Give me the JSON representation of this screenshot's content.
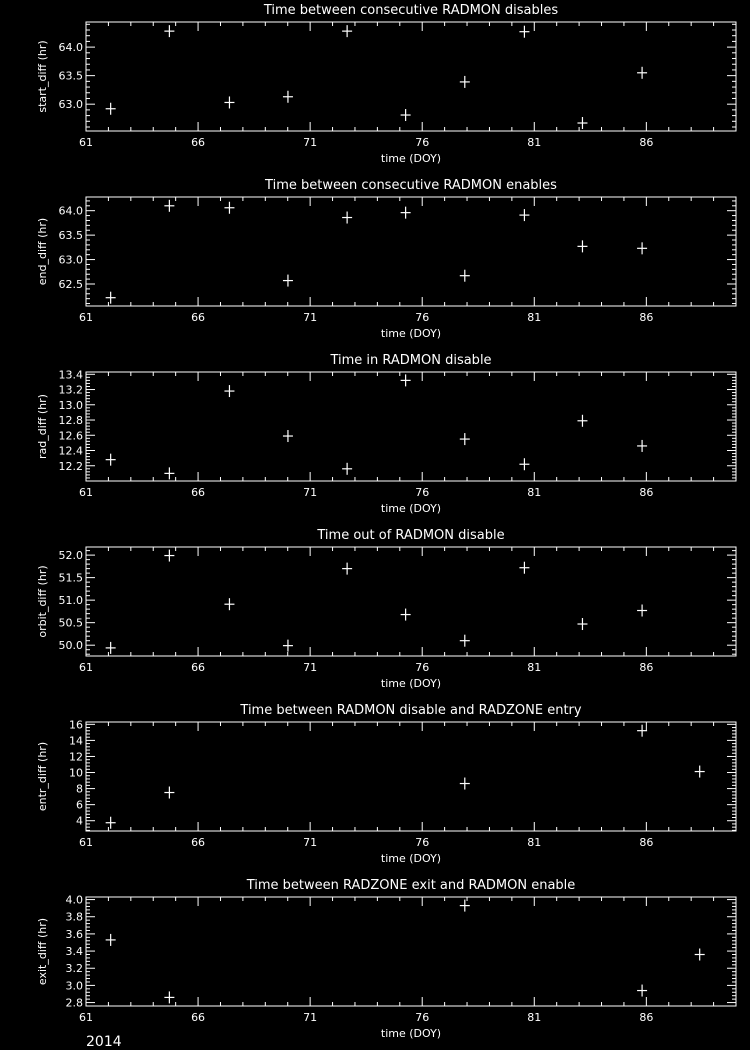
{
  "colors": {
    "background": "#000000",
    "foreground": "#ffffff"
  },
  "year_label": "2014",
  "chart_data": [
    {
      "type": "scatter",
      "marker": "plus",
      "title": "Time between consecutive RADMON disables",
      "xlabel": "time (DOY)",
      "ylabel": "start_diff (hr)",
      "xlim": [
        61,
        90
      ],
      "ylim": [
        62.53,
        64.44
      ],
      "xticks": [
        61,
        66,
        71,
        76,
        81,
        86
      ],
      "yticks": [
        "63.0",
        "63.5",
        "64.0"
      ],
      "x": [
        62.1,
        64.72,
        67.4,
        70.01,
        72.65,
        75.26,
        77.9,
        80.56,
        83.15,
        85.81
      ],
      "y": [
        62.92,
        64.28,
        63.03,
        63.13,
        64.28,
        62.81,
        63.39,
        64.27,
        62.67,
        63.55
      ]
    },
    {
      "type": "scatter",
      "marker": "plus",
      "title": "Time between consecutive RADMON enables",
      "xlabel": "time (DOY)",
      "ylabel": "end_diff (hr)",
      "xlim": [
        61,
        90
      ],
      "ylim": [
        62.05,
        64.28
      ],
      "xticks": [
        61,
        66,
        71,
        76,
        81,
        86
      ],
      "yticks": [
        "62.5",
        "63.0",
        "63.5",
        "64.0"
      ],
      "x": [
        62.1,
        64.72,
        67.4,
        70.01,
        72.65,
        75.26,
        77.9,
        80.56,
        83.15,
        85.81
      ],
      "y": [
        62.22,
        64.1,
        64.06,
        62.57,
        63.86,
        63.96,
        62.67,
        63.91,
        63.27,
        63.23
      ]
    },
    {
      "type": "scatter",
      "marker": "plus",
      "title": "Time in RADMON disable",
      "xlabel": "time (DOY)",
      "ylabel": "rad_diff (hr)",
      "xlim": [
        61,
        90
      ],
      "ylim": [
        12.0,
        13.43
      ],
      "xticks": [
        61,
        66,
        71,
        76,
        81,
        86
      ],
      "yticks": [
        "12.2",
        "12.4",
        "12.6",
        "12.8",
        "13.0",
        "13.2",
        "13.4"
      ],
      "x": [
        62.1,
        64.72,
        67.4,
        70.01,
        72.65,
        75.26,
        77.9,
        80.56,
        83.15,
        85.81
      ],
      "y": [
        12.28,
        12.1,
        13.18,
        12.59,
        12.16,
        13.32,
        12.55,
        12.22,
        12.79,
        12.46
      ]
    },
    {
      "type": "scatter",
      "marker": "plus",
      "title": "Time out of RADMON disable",
      "xlabel": "time (DOY)",
      "ylabel": "orbit_diff (hr)",
      "xlim": [
        61,
        90
      ],
      "ylim": [
        49.76,
        52.18
      ],
      "xticks": [
        61,
        66,
        71,
        76,
        81,
        86
      ],
      "yticks": [
        "50.0",
        "50.5",
        "51.0",
        "51.5",
        "52.0"
      ],
      "x": [
        62.1,
        64.72,
        67.4,
        70.01,
        72.65,
        75.26,
        77.9,
        80.56,
        83.15,
        85.81
      ],
      "y": [
        49.94,
        51.99,
        50.91,
        49.99,
        51.7,
        50.68,
        50.1,
        51.72,
        50.47,
        50.77
      ]
    },
    {
      "type": "scatter",
      "marker": "plus",
      "title": "Time between RADMON disable and RADZONE entry",
      "xlabel": "time (DOY)",
      "ylabel": "entr_diff (hr)",
      "xlim": [
        61,
        90
      ],
      "ylim": [
        2.72,
        16.29
      ],
      "xticks": [
        61,
        66,
        71,
        76,
        81,
        86
      ],
      "yticks": [
        "4",
        "6",
        "8",
        "10",
        "12",
        "14",
        "16"
      ],
      "x": [
        62.1,
        64.72,
        77.9,
        85.81,
        88.38
      ],
      "y": [
        3.75,
        7.51,
        8.63,
        15.21,
        10.12
      ]
    },
    {
      "type": "scatter",
      "marker": "plus",
      "title": "Time between RADZONE exit and RADMON enable",
      "xlabel": "time (DOY)",
      "ylabel": "exit_diff (hr)",
      "xlim": [
        61,
        90
      ],
      "ylim": [
        2.76,
        4.03
      ],
      "xticks": [
        61,
        66,
        71,
        76,
        81,
        86
      ],
      "yticks": [
        "2.8",
        "3.0",
        "3.2",
        "3.4",
        "3.6",
        "3.8",
        "4.0"
      ],
      "x": [
        62.1,
        64.72,
        77.9,
        85.81,
        88.38
      ],
      "y": [
        3.53,
        2.86,
        3.93,
        2.94,
        3.36
      ]
    }
  ]
}
